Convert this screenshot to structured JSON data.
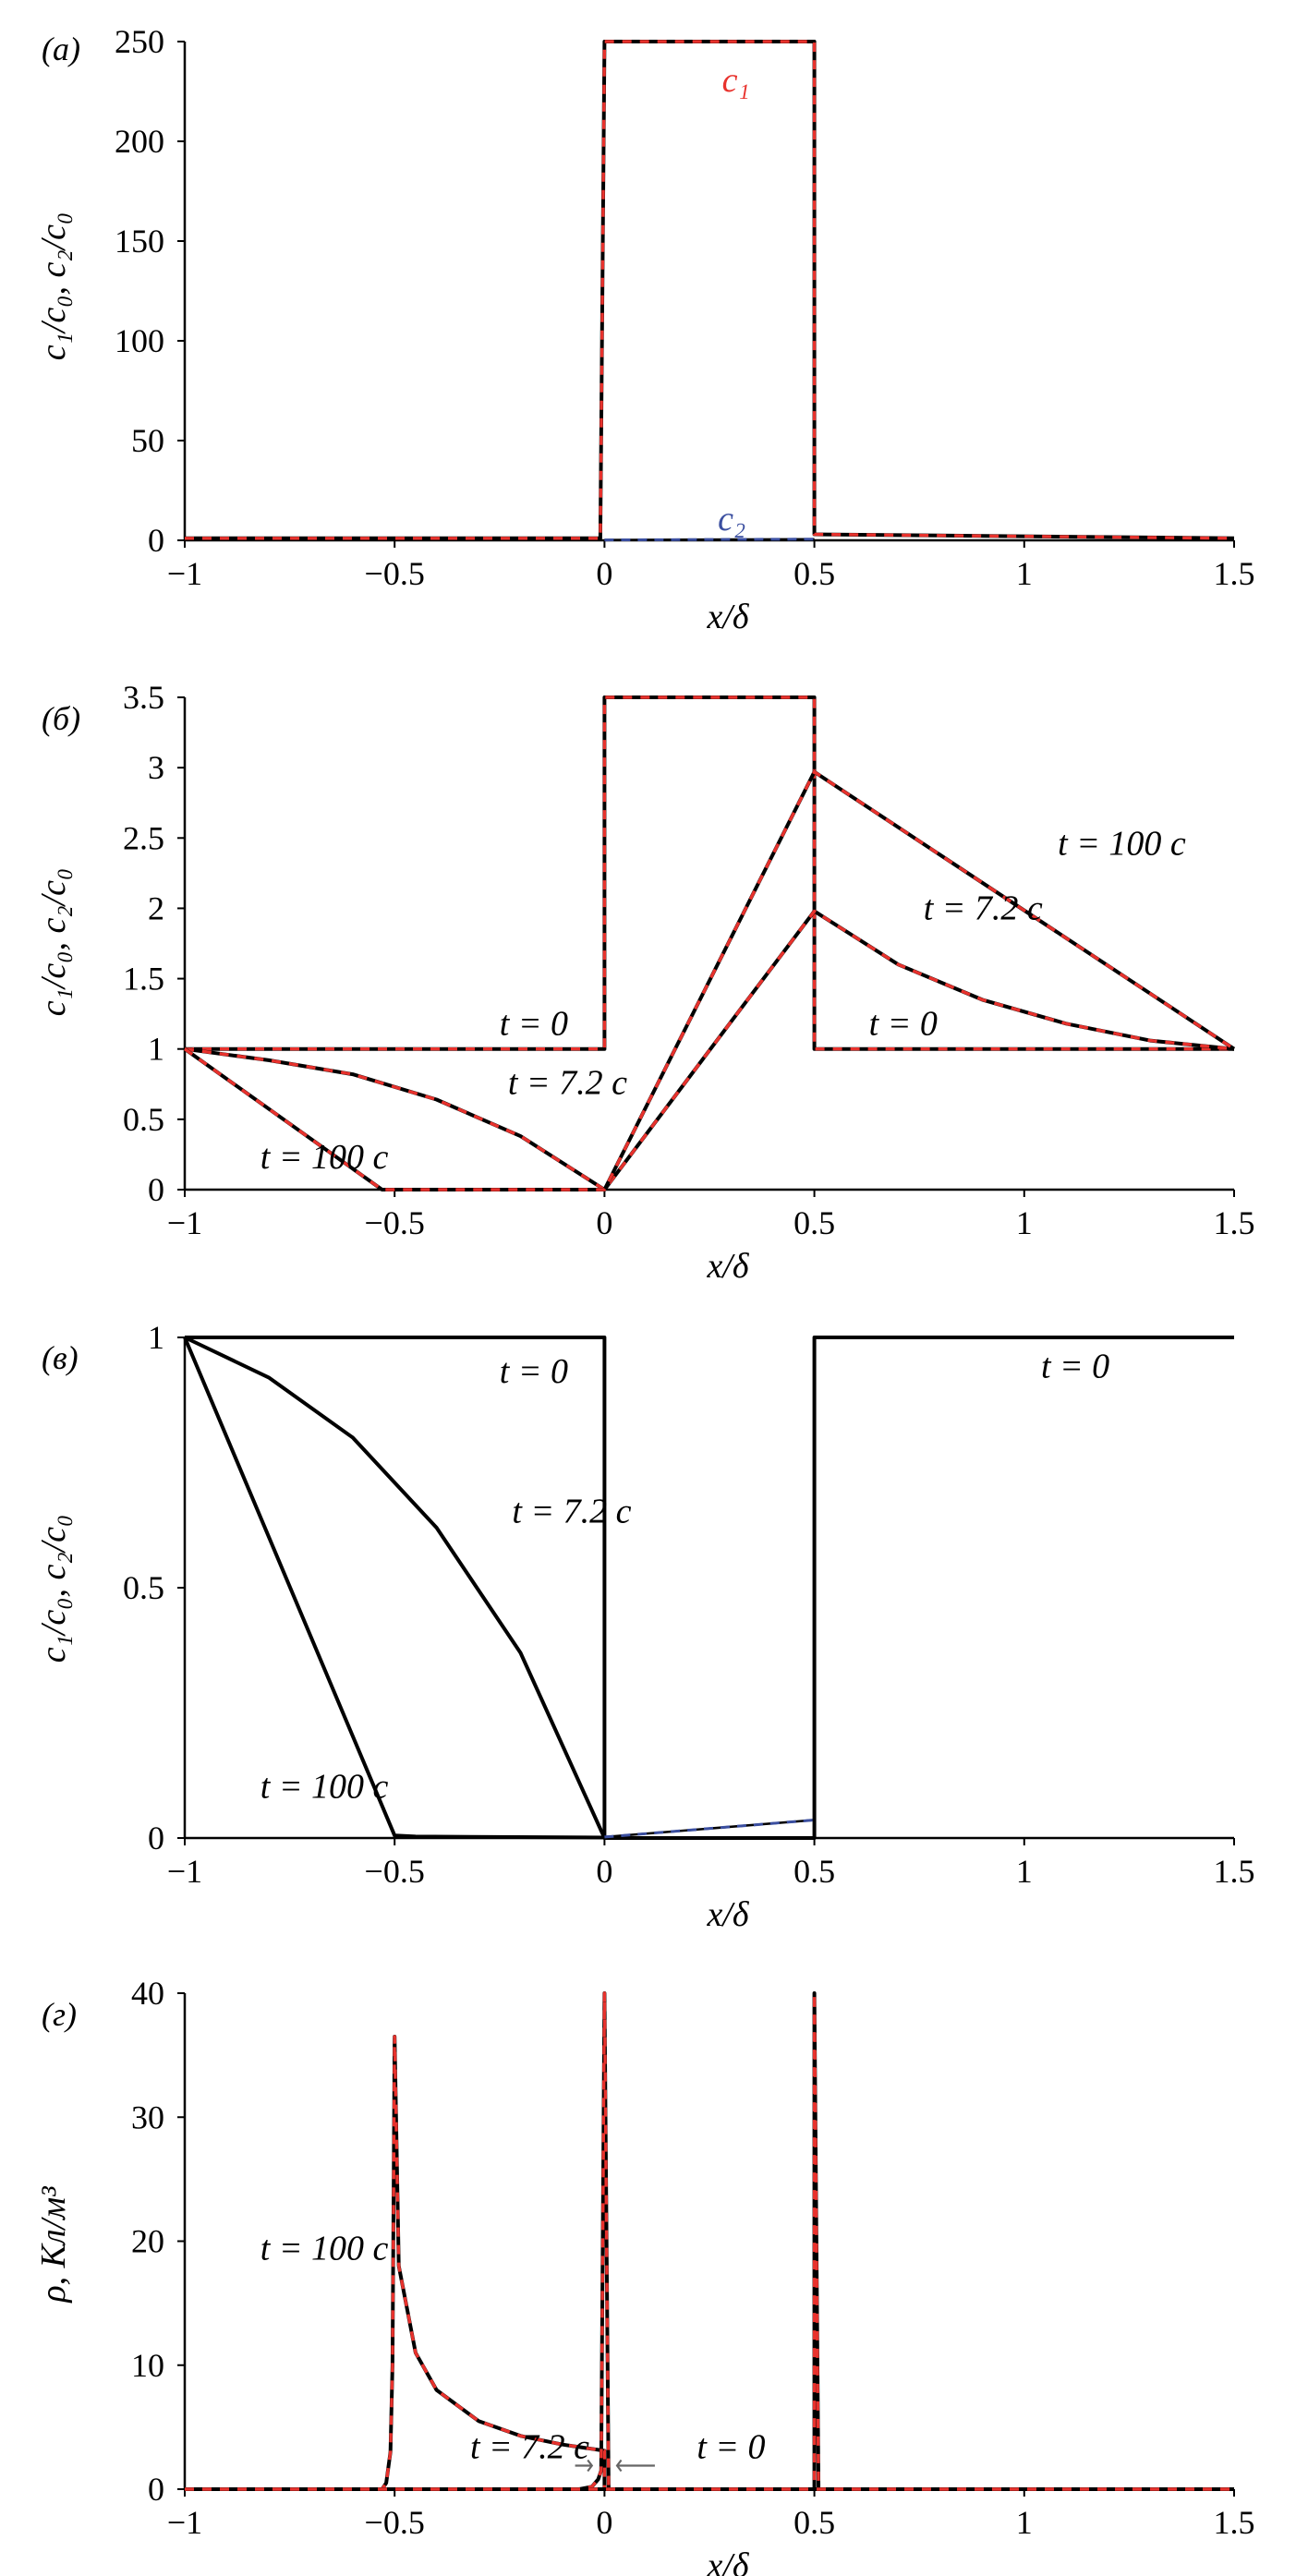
{
  "chart_data": [
    {
      "id": "a",
      "panel_label": "(а)",
      "type": "line",
      "xlabel": "x/δ",
      "ylabel": "c₁/c₀, c₂/c₀",
      "xlim": [
        -1,
        1.5
      ],
      "ylim": [
        0,
        250
      ],
      "xticks": [
        "−1",
        "−0.5",
        "0",
        "0.5",
        "1",
        "1.5"
      ],
      "yticks": [
        "0",
        "50",
        "100",
        "150",
        "200",
        "250"
      ],
      "series": [
        {
          "name": "c₁",
          "color": "#e8322d",
          "style": "red-dash",
          "x": [
            -1,
            -0.02,
            -0.01,
            0,
            0.49,
            0.5,
            0.5,
            1.5
          ],
          "y": [
            1,
            1,
            1,
            250,
            250,
            250,
            3,
            1
          ]
        },
        {
          "name": "c₂",
          "color": "#3b4fa0",
          "style": "blue-dash",
          "x": [
            0,
            0.5
          ],
          "y": [
            0.2,
            0.6
          ]
        }
      ],
      "annotations": [
        {
          "text": "c₁",
          "x": 0.28,
          "y": 225,
          "color": "#e8322d"
        },
        {
          "text": "c₂",
          "x": 0.27,
          "y": 5,
          "color": "#3b4fa0"
        }
      ]
    },
    {
      "id": "b",
      "panel_label": "(б)",
      "type": "line",
      "xlabel": "x/δ",
      "ylabel": "c₁/c₀, c₂/c₀",
      "xlim": [
        -1,
        1.5
      ],
      "ylim": [
        0,
        3.5
      ],
      "xticks": [
        "−1",
        "−0.5",
        "0",
        "0.5",
        "1",
        "1.5"
      ],
      "yticks": [
        "0",
        "0.5",
        "1",
        "1.5",
        "2",
        "2.5",
        "3",
        "3.5"
      ],
      "series": [
        {
          "label": "t = 0",
          "x": [
            -1,
            0,
            0,
            0.5,
            0.5,
            1.5
          ],
          "y": [
            1,
            1,
            3.5,
            3.5,
            1,
            1
          ]
        },
        {
          "label": "t = 7.2 c",
          "x": [
            -1,
            -0.8,
            -0.6,
            -0.4,
            -0.2,
            0,
            0.5,
            0.7,
            0.9,
            1.1,
            1.3,
            1.5
          ],
          "y": [
            1,
            0.92,
            0.82,
            0.64,
            0.38,
            0,
            1.98,
            1.6,
            1.35,
            1.18,
            1.06,
            1
          ]
        },
        {
          "label": "t = 100 c",
          "x": [
            -1,
            -0.53,
            -0.5,
            0,
            0.5,
            1.5
          ],
          "y": [
            1,
            0,
            0,
            0,
            2.97,
            1
          ]
        }
      ],
      "annotations": [
        {
          "text": "t = 0",
          "x": -0.25,
          "y": 1.1
        },
        {
          "text": "t = 7.2 c",
          "x": -0.23,
          "y": 0.68
        },
        {
          "text": "t = 100 c",
          "x": -0.82,
          "y": 0.15
        },
        {
          "text": "t = 100 c",
          "x": 1.08,
          "y": 2.38
        },
        {
          "text": "t = 7.2 c",
          "x": 0.76,
          "y": 1.92
        },
        {
          "text": "t = 0",
          "x": 0.63,
          "y": 1.1
        }
      ]
    },
    {
      "id": "c",
      "panel_label": "(в)",
      "type": "line",
      "xlabel": "x/δ",
      "ylabel": "c₁/c₀, c₂/c₀",
      "xlim": [
        -1,
        1.5
      ],
      "ylim": [
        0,
        1
      ],
      "xticks": [
        "−1",
        "−0.5",
        "0",
        "0.5",
        "1",
        "1.5"
      ],
      "yticks": [
        "0",
        "0.5",
        "1"
      ],
      "series": [
        {
          "label": "t = 0",
          "x": [
            -1,
            0,
            0,
            0.5,
            0.5,
            1.5
          ],
          "y": [
            1,
            1,
            0,
            0,
            1,
            1
          ]
        },
        {
          "label": "t = 7.2 c",
          "x": [
            -1,
            -0.8,
            -0.6,
            -0.4,
            -0.2,
            0
          ],
          "y": [
            1,
            0.92,
            0.8,
            0.62,
            0.37,
            0
          ]
        },
        {
          "label": "t = 100 c",
          "x": [
            -1,
            -0.5,
            -0.45,
            0
          ],
          "y": [
            1,
            0.005,
            0.003,
            0.001
          ]
        },
        {
          "label": "c₂",
          "x": [
            0,
            0.5
          ],
          "y": [
            0.002,
            0.036
          ]
        }
      ],
      "annotations": [
        {
          "text": "t = 0",
          "x": -0.25,
          "y": 0.91
        },
        {
          "text": "t = 7.2 c",
          "x": -0.22,
          "y": 0.63
        },
        {
          "text": "t = 100 c",
          "x": -0.82,
          "y": 0.08
        },
        {
          "text": "t = 0",
          "x": 1.04,
          "y": 0.92
        }
      ]
    },
    {
      "id": "d",
      "panel_label": "(г)",
      "type": "line",
      "xlabel": "x/δ",
      "ylabel": "ρ, Кл/м³",
      "xlim": [
        -1,
        1.5
      ],
      "ylim": [
        0,
        40
      ],
      "xticks": [
        "−1",
        "−0.5",
        "0",
        "0.5",
        "1",
        "1.5"
      ],
      "yticks": [
        "0",
        "10",
        "20",
        "30",
        "40"
      ],
      "series": [
        {
          "label": "t = 100 c",
          "x": [
            -1,
            -0.53,
            -0.52,
            -0.51,
            -0.505,
            -0.5,
            -0.49,
            -0.45,
            -0.4,
            -0.3,
            -0.2,
            -0.1,
            0,
            0,
            0.5,
            0.5,
            1.5
          ],
          "y": [
            0,
            0,
            0.5,
            3,
            10,
            36.5,
            18,
            11,
            8,
            5.5,
            4.3,
            3.6,
            3.1,
            0,
            0,
            0,
            0
          ]
        },
        {
          "label": "t = 7.2 c",
          "x": [
            -1,
            -0.06,
            -0.03,
            -0.015,
            -0.008,
            0,
            0.01,
            0.5,
            0.5,
            0.51,
            1.5
          ],
          "y": [
            0,
            0,
            0.2,
            0.8,
            1.5,
            40,
            0,
            0,
            40,
            0,
            0
          ]
        },
        {
          "label": "t = 0",
          "x": [
            -1,
            1.5
          ],
          "y": [
            0,
            0
          ]
        }
      ],
      "annotations": [
        {
          "text": "t = 100 c",
          "x": -0.82,
          "y": 18.5
        },
        {
          "text": "t = 7.2 c",
          "x": -0.32,
          "y": 2.5
        },
        {
          "text": "t = 0",
          "x": 0.22,
          "y": 2.5
        }
      ]
    }
  ]
}
